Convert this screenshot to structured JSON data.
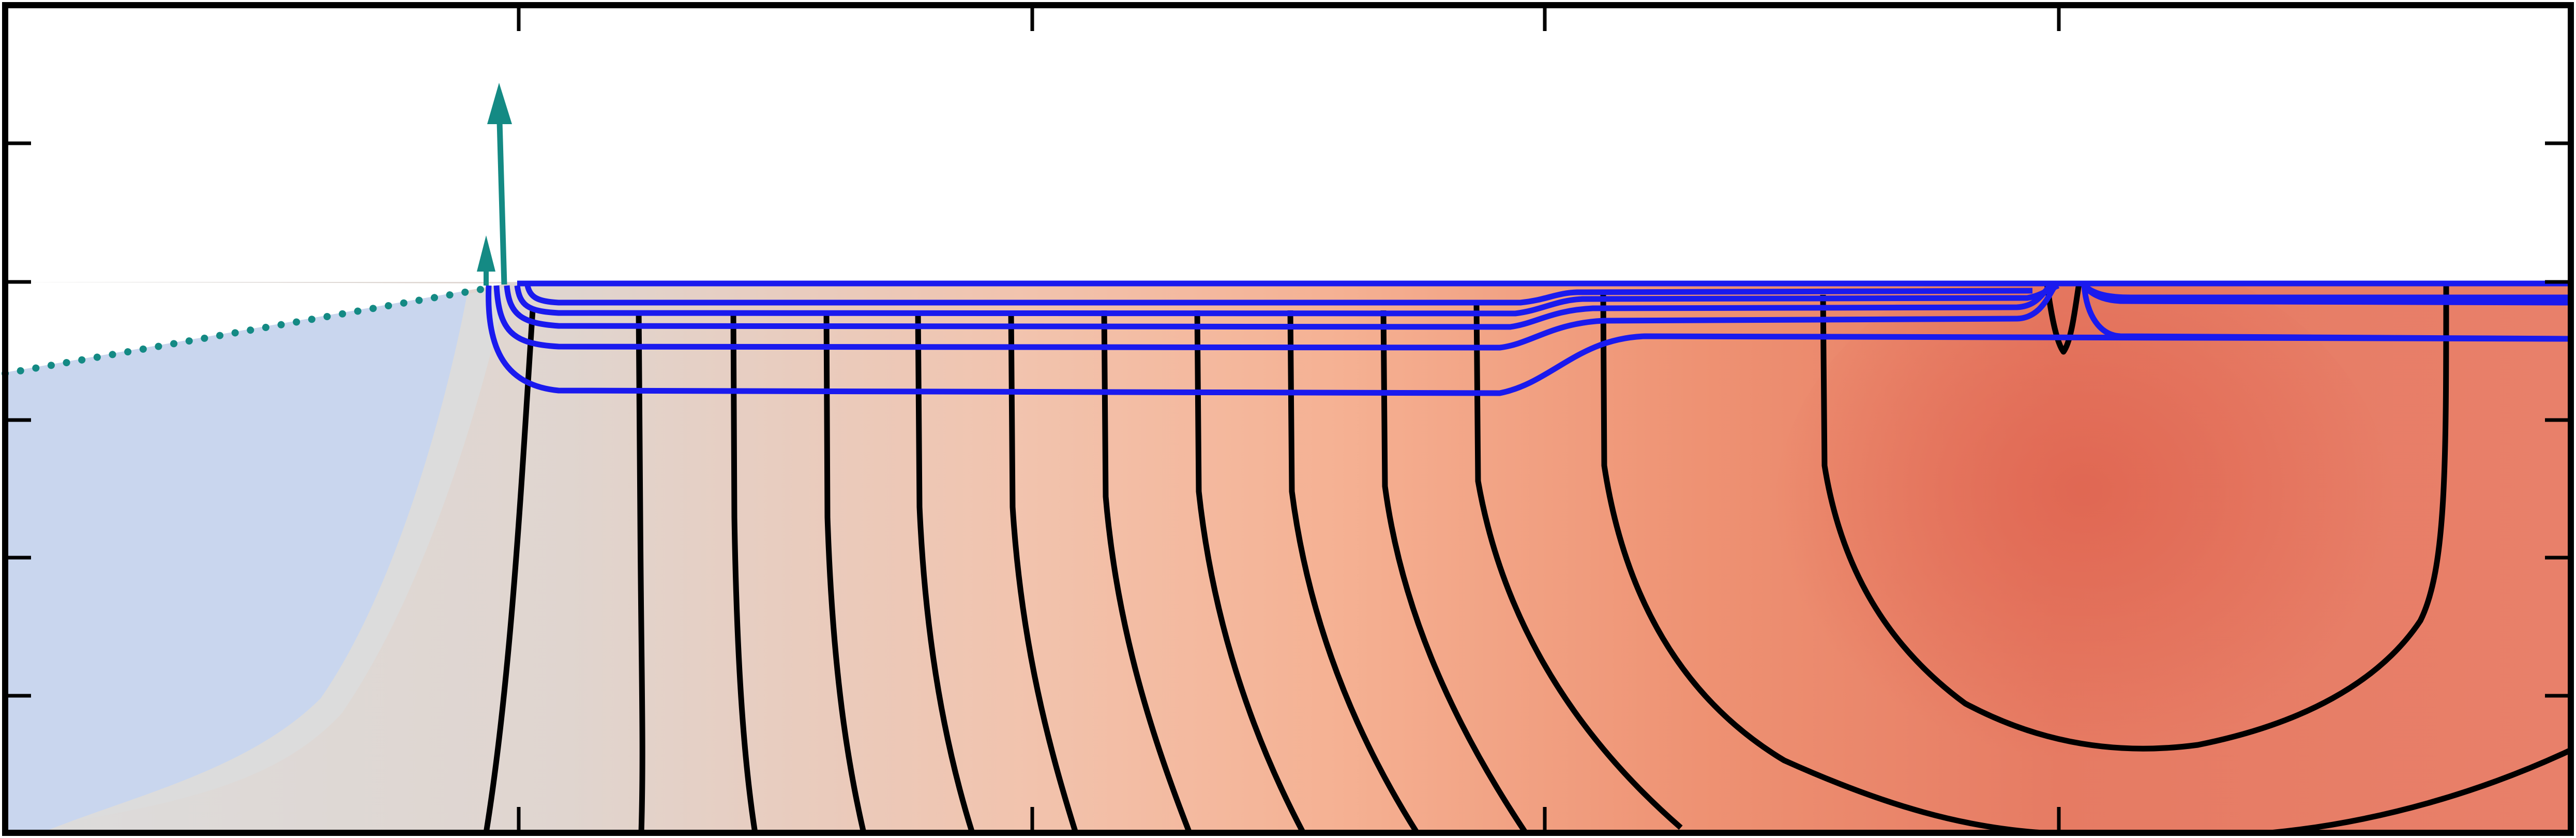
{
  "figure": {
    "kind": "contour-cross-section",
    "title": "",
    "colors": {
      "frame": "#000000",
      "background": "#ffffff",
      "ocean_fill": "#c9d6ee",
      "transition_fill": "#dcdcdc",
      "heat_low": "#ded9d6",
      "heat_mid": "#f4b79a",
      "heat_high": "#e06a55",
      "black_contours": "#000000",
      "blue_contours": "#1a1aee",
      "arrows": "#148a84",
      "dotted_line": "#148a84"
    },
    "axes": {
      "tick_labels": [],
      "axis_labels": []
    },
    "arrows": {
      "count": 2,
      "direction": "up",
      "icon": "upward-arrow"
    },
    "black_contour_count": 14,
    "blue_contour_count": 5,
    "has_dotted_slope_line": true
  }
}
